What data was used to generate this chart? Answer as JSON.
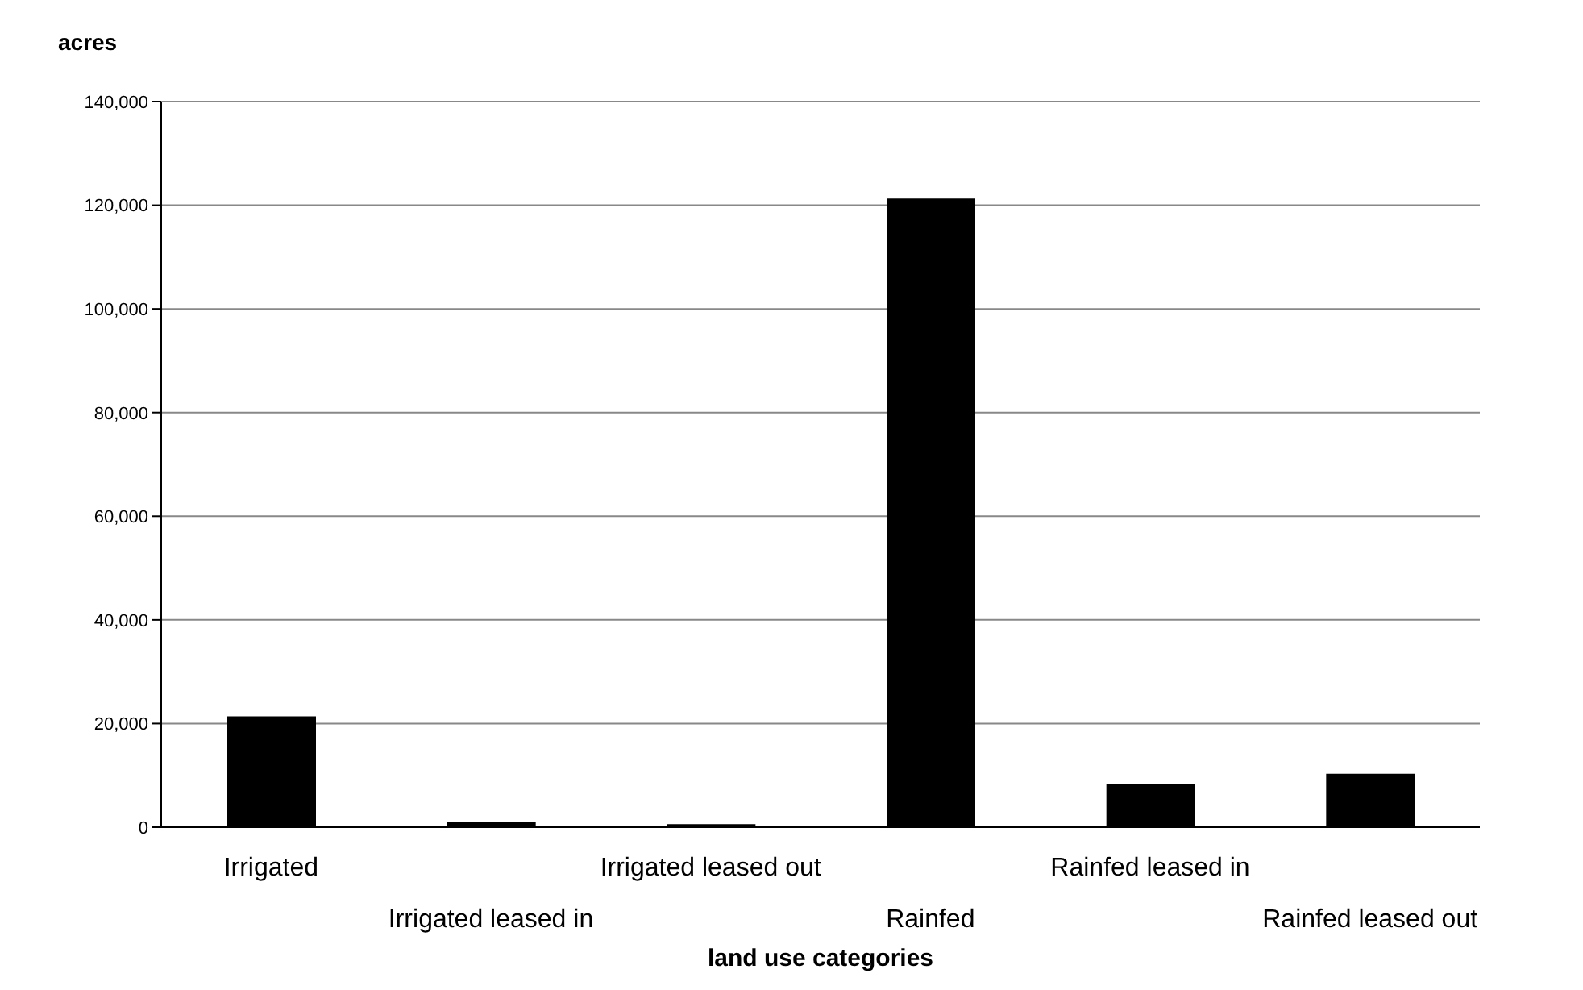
{
  "chart_data": {
    "type": "bar",
    "ylabel": "acres",
    "xlabel": "land use categories",
    "categories": [
      "Irrigated",
      "Irrigated leased in",
      "Irrigated leased out",
      "Rainfed",
      "Rainfed leased in",
      "Rainfed leased out"
    ],
    "values": [
      21400,
      1000,
      600,
      121300,
      8400,
      10300
    ],
    "color": "#000000",
    "ylim": [
      0,
      140000
    ],
    "yticks": [
      0,
      {
        "value": 20000,
        "label": "20,000"
      },
      {
        "value": 40000,
        "label": "40,000"
      },
      {
        "value": 60000,
        "label": "60,000"
      },
      {
        "value": 80000,
        "label": "80,000"
      },
      {
        "value": 100000,
        "label": "100,000"
      },
      {
        "value": 120000,
        "label": "120,000"
      },
      {
        "value": 140000,
        "label": "140,000"
      }
    ],
    "grid": "y"
  }
}
